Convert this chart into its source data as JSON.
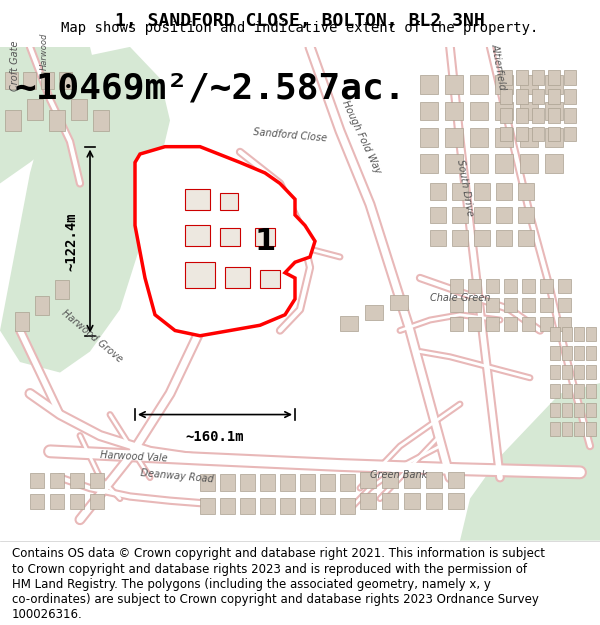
{
  "title": "1, SANDFORD CLOSE, BOLTON, BL2 3NH",
  "subtitle": "Map shows position and indicative extent of the property.",
  "area_label": "~10469m²/~2.587ac.",
  "plot_number": "1",
  "width_label": "~160.1m",
  "height_label": "~122.4m",
  "footer_lines": [
    "Contains OS data © Crown copyright and database right 2021. This information is subject",
    "to Crown copyright and database rights 2023 and is reproduced with the permission of",
    "HM Land Registry. The polygons (including the associated geometry, namely x, y",
    "co-ordinates) are subject to Crown copyright and database rights 2023 Ordnance Survey",
    "100026316."
  ],
  "map_bg": "#f5f3ee",
  "green_area_color": "#d6e8d4",
  "street_line_color": "#e8b8b8",
  "building_color": "#d4c9bc",
  "title_fontsize": 13,
  "subtitle_fontsize": 10,
  "area_fontsize": 26,
  "footer_fontsize": 8.5
}
